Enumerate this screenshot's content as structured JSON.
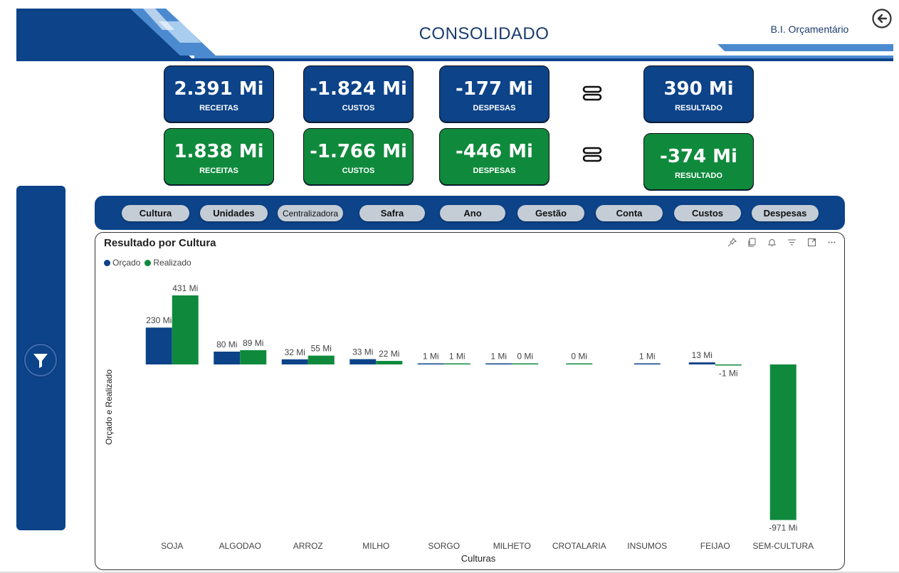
{
  "header": {
    "title": "CONSOLIDADO",
    "brand": "B.I. Orçamentário",
    "back_icon": "arrow-left-circle-icon"
  },
  "kpis_orcado": [
    {
      "value": "2.391 Mi",
      "label": "RECEITAS"
    },
    {
      "value": "-1.824 Mi",
      "label": "CUSTOS"
    },
    {
      "value": "-177 Mi",
      "label": "DESPESAS"
    },
    {
      "value": "390 Mi",
      "label": "RESULTADO"
    }
  ],
  "kpis_realizado": [
    {
      "value": "1.838 Mi",
      "label": "RECEITAS"
    },
    {
      "value": "-1.766 Mi",
      "label": "CUSTOS"
    },
    {
      "value": "-446 Mi",
      "label": "DESPESAS"
    },
    {
      "value": "-374 Mi",
      "label": "RESULTADO"
    }
  ],
  "slicers": [
    "Cultura",
    "Unidades",
    "Centralizadora",
    "Safra",
    "Ano",
    "Gestão",
    "Conta",
    "Custos",
    "Despesas"
  ],
  "colors": {
    "primary_blue": "#0c4389",
    "green": "#0f8a3c",
    "orcado": "#0c4389",
    "realizado": "#0f8a3c"
  },
  "chart_data": {
    "type": "bar",
    "title": "Resultado por Cultura",
    "xlabel": "Culturas",
    "ylabel": "Orçado e Realizado",
    "legend": "top-left",
    "categories": [
      "SOJA",
      "ALGODAO",
      "ARROZ",
      "MILHO",
      "SORGO",
      "MILHETO",
      "CROTALARIA",
      "INSUMOS",
      "FEIJAO",
      "SEM-CULTURA"
    ],
    "series": [
      {
        "name": "Orçado",
        "values": [
          230,
          80,
          32,
          33,
          1,
          1,
          null,
          1,
          13,
          null
        ],
        "labels": [
          "230 Mi",
          "80 Mi",
          "32 Mi",
          "33 Mi",
          "1 Mi",
          "1 Mi",
          "",
          "1 Mi",
          "13 Mi",
          ""
        ]
      },
      {
        "name": "Realizado",
        "values": [
          431,
          89,
          55,
          22,
          1,
          0,
          0,
          null,
          -1,
          -971
        ],
        "labels": [
          "431 Mi",
          "89 Mi",
          "55 Mi",
          "22 Mi",
          "1 Mi",
          "0 Mi",
          "0 Mi",
          "",
          "-1 Mi",
          "-971 Mi"
        ]
      }
    ],
    "ylim": [
      -971,
      431
    ]
  }
}
